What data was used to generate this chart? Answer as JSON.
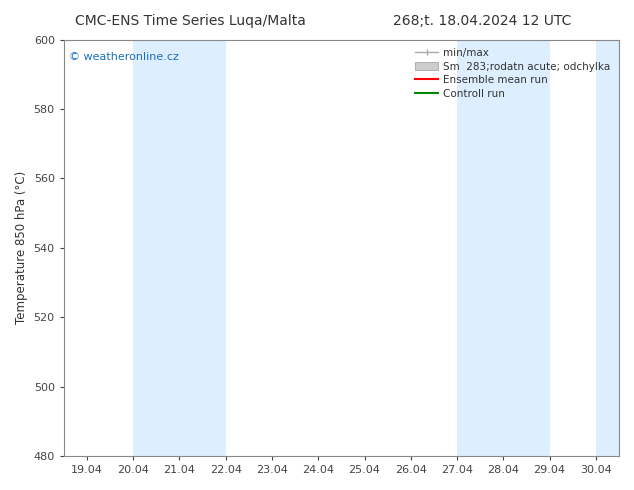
{
  "title_left": "CMC-ENS Time Series Luqa/Malta",
  "title_right": "268;t. 18.04.2024 12 UTC",
  "ylabel": "Temperature 850 hPa (°C)",
  "ylim": [
    480,
    600
  ],
  "yticks": [
    480,
    500,
    520,
    540,
    560,
    580,
    600
  ],
  "x_labels": [
    "19.04",
    "20.04",
    "21.04",
    "22.04",
    "23.04",
    "24.04",
    "25.04",
    "26.04",
    "27.04",
    "28.04",
    "29.04",
    "30.04"
  ],
  "x_values": [
    0,
    1,
    2,
    3,
    4,
    5,
    6,
    7,
    8,
    9,
    10,
    11
  ],
  "xlim": [
    -0.5,
    11.5
  ],
  "shaded_bands": [
    {
      "x_start": 1,
      "x_end": 3,
      "color": "#ddeeff"
    },
    {
      "x_start": 8,
      "x_end": 10,
      "color": "#ddeeff"
    },
    {
      "x_start": 11,
      "x_end": 11.5,
      "color": "#ddeeff"
    }
  ],
  "watermark_text": "© weatheronline.cz",
  "watermark_color": "#1a6fbf",
  "legend_label_1": "min/max",
  "legend_label_2": "Sm  283;rodatn acute; odchylka",
  "legend_label_3": "Ensemble mean run",
  "legend_label_4": "Controll run",
  "legend_color_1": "#aaaaaa",
  "legend_color_2": "#cccccc",
  "legend_color_3": "#ff0000",
  "legend_color_4": "#008800",
  "bg_color": "#ffffff",
  "plot_bg_color": "#ffffff",
  "spine_color": "#888888",
  "tick_color": "#444444",
  "font_color": "#333333",
  "title_fontsize": 10,
  "axis_fontsize": 8.5,
  "tick_fontsize": 8,
  "legend_fontsize": 7.5
}
